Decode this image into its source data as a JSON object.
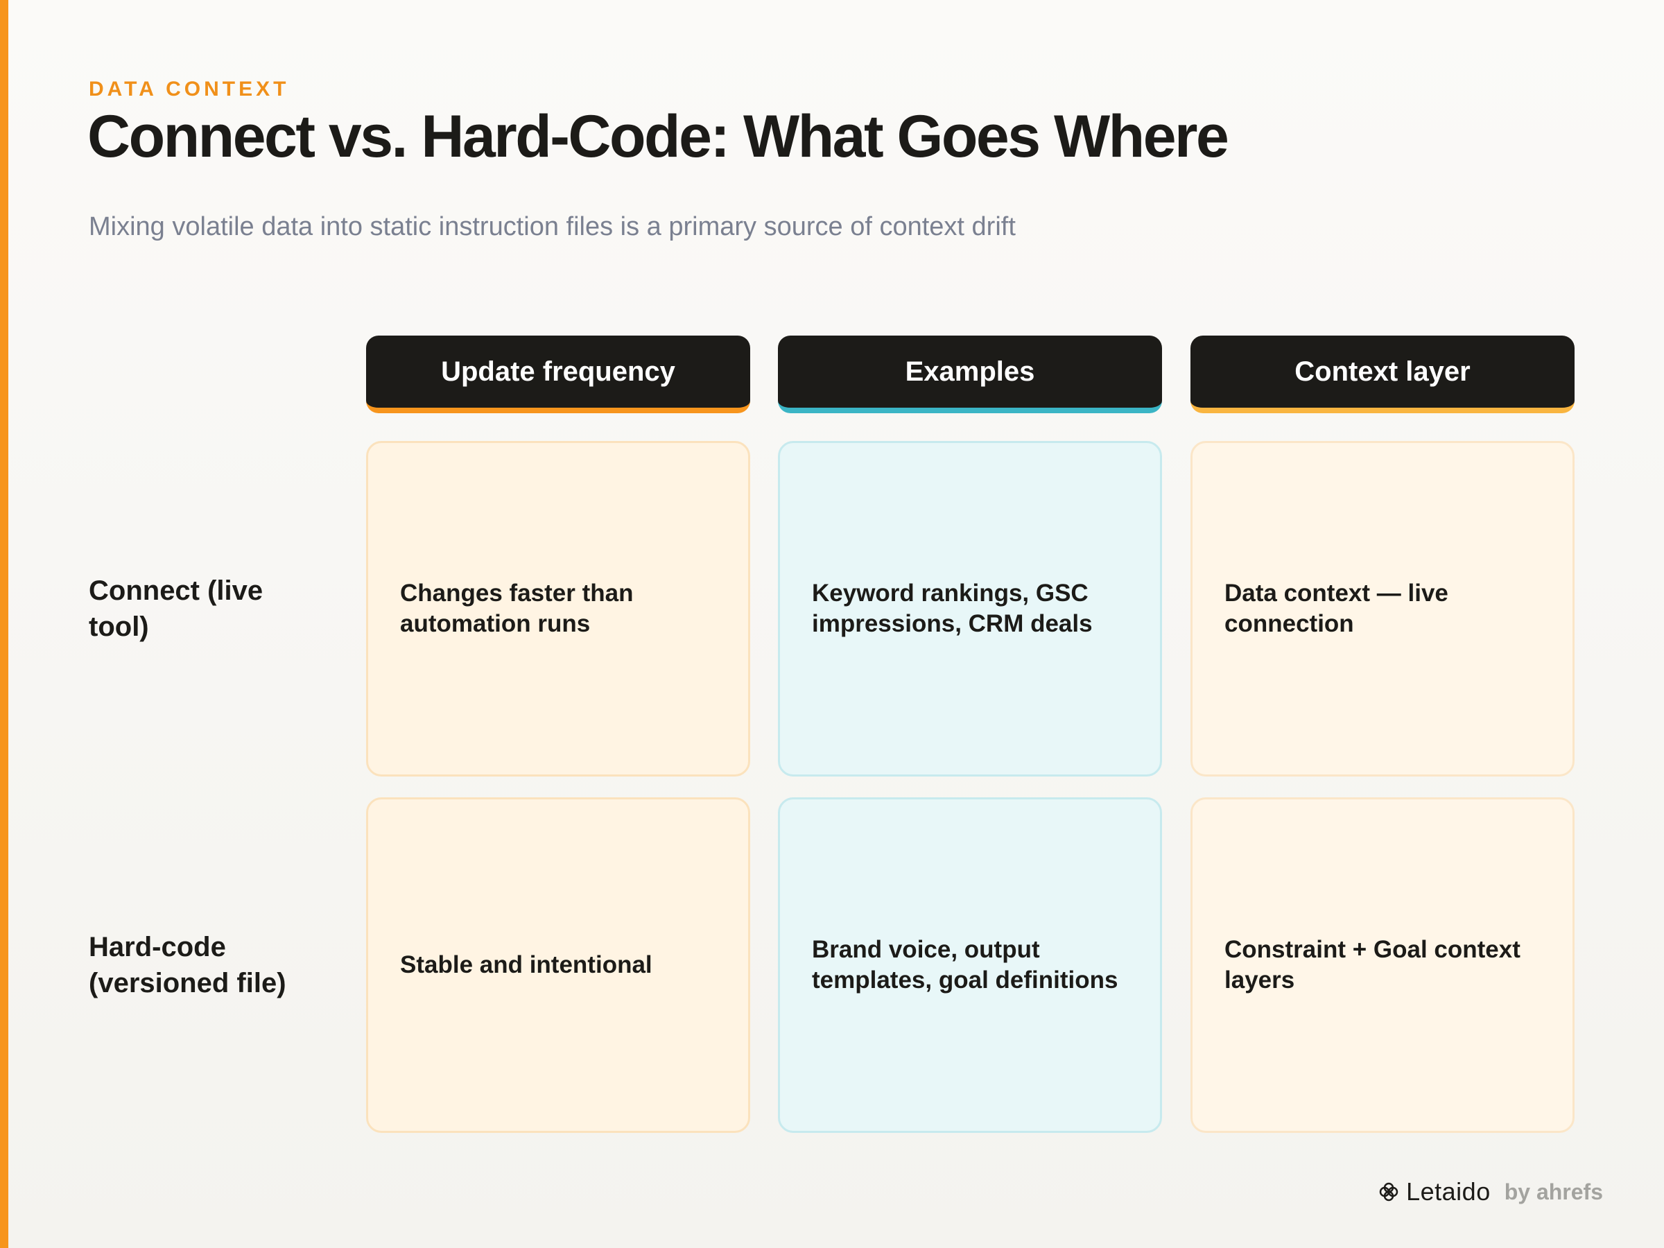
{
  "header": {
    "eyebrow": "DATA CONTEXT",
    "title": "Connect vs. Hard-Code: What Goes Where",
    "subtitle": "Mixing volatile data into static instruction files is a primary source of context drift"
  },
  "columns": [
    {
      "label": "Update frequency",
      "accent": "#f7951d"
    },
    {
      "label": "Examples",
      "accent": "#3bb5c5"
    },
    {
      "label": "Context layer",
      "accent": "#f9b540"
    }
  ],
  "rows": [
    {
      "label": "Connect (live tool)",
      "cells": [
        "Changes faster than automation runs",
        "Keyword rankings, GSC impressions, CRM deals",
        "Data context — live connection"
      ]
    },
    {
      "label": "Hard-code (versioned file)",
      "cells": [
        "Stable and intentional",
        "Brand voice, output templates, goal definitions",
        "Constraint + Goal context layers"
      ]
    }
  ],
  "footer": {
    "brand_icon": "flower-icon",
    "brand_name": "Letaido",
    "brand_suffix": "by ahrefs"
  },
  "colors": {
    "accent_bar": "#f7951d",
    "eyebrow": "#f0901a",
    "header_bg": "#1c1b18",
    "warm_cell": "#fff4e3",
    "cool_cell": "#e8f7f8"
  }
}
